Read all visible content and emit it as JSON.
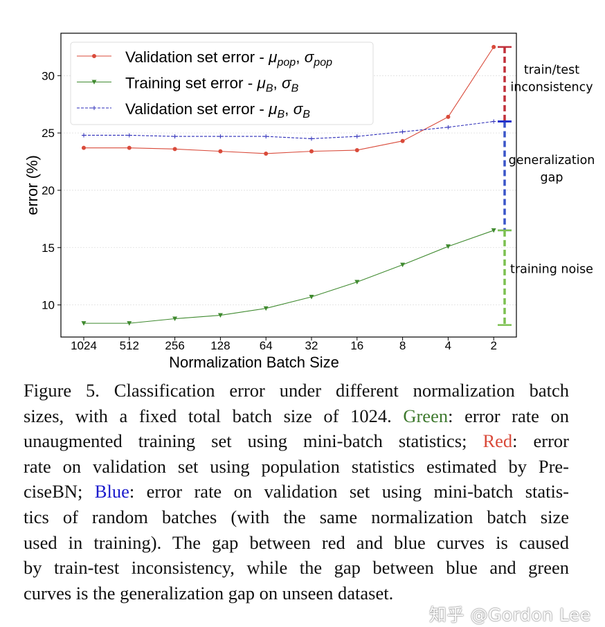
{
  "chart_data": {
    "type": "line",
    "xlabel": "Normalization Batch Size",
    "ylabel": "error (%)",
    "categories": [
      "1024",
      "512",
      "256",
      "128",
      "64",
      "32",
      "16",
      "8",
      "4",
      "2"
    ],
    "ylim": [
      7.2,
      33.7
    ],
    "yticks": [
      10,
      15,
      20,
      25,
      30
    ],
    "grid": "horizontal",
    "legend_placement": "top-left",
    "series": [
      {
        "name": "Validation set error - μpop, σpop",
        "label_main": "Validation set error - ",
        "label_math": [
          [
            "μ",
            "pop"
          ],
          [
            "σ",
            "pop"
          ]
        ],
        "color": "#d94a3a",
        "marker": "circle",
        "linestyle": "solid",
        "values": [
          23.7,
          23.7,
          23.6,
          23.4,
          23.2,
          23.4,
          23.5,
          24.3,
          26.4,
          32.5
        ]
      },
      {
        "name": "Training set error - μB, σB",
        "label_main": "Training set error - ",
        "label_math": [
          [
            "μ",
            "B"
          ],
          [
            "σ",
            "B"
          ]
        ],
        "color": "#3f8a2f",
        "marker": "triangle-down",
        "linestyle": "solid",
        "values": [
          8.4,
          8.4,
          8.8,
          9.1,
          9.7,
          10.7,
          12.0,
          13.5,
          15.1,
          16.5
        ]
      },
      {
        "name": "Validation set error - μB, σB",
        "label_main": "Validation set error - ",
        "label_math": [
          [
            "μ",
            "B"
          ],
          [
            "σ",
            "B"
          ]
        ],
        "color": "#2b2bb8",
        "marker": "plus",
        "linestyle": "dashed",
        "values": [
          24.8,
          24.8,
          24.7,
          24.7,
          24.7,
          24.5,
          24.7,
          25.1,
          25.5,
          26.0
        ]
      }
    ],
    "annotations": [
      {
        "text": [
          "train/test",
          "inconsistency"
        ],
        "from": 26.0,
        "to": 32.5,
        "color": "#c0303a"
      },
      {
        "text": [
          "generalization",
          "gap"
        ],
        "from": 16.5,
        "to": 26.0,
        "color": "#3a55c8"
      },
      {
        "text": [
          "training noise"
        ],
        "from": 8.25,
        "to": 16.5,
        "color": "#7cc050"
      }
    ]
  },
  "caption": {
    "lines": [
      [
        {
          "t": "Figure 5.  Classification error under different normalization batch"
        }
      ],
      [
        {
          "t": "sizes, with a fixed total batch size of 1024. "
        },
        {
          "t": "Green",
          "c": "#3f7a2f"
        },
        {
          "t": ": error rate on"
        }
      ],
      [
        {
          "t": "unaugmented training set using mini-batch statistics; "
        },
        {
          "t": "Red",
          "c": "#d94a3a"
        },
        {
          "t": ": error"
        }
      ],
      [
        {
          "t": "rate on validation set using population statistics estimated by Pre-"
        }
      ],
      [
        {
          "t": "ciseBN; "
        },
        {
          "t": "Blue",
          "c": "#1a1acc"
        },
        {
          "t": ": error rate on validation set using mini-batch statis-"
        }
      ],
      [
        {
          "t": "tics of random batches (with the same normalization batch size"
        }
      ],
      [
        {
          "t": "used in training). The gap between red and blue curves is caused"
        }
      ],
      [
        {
          "t": "by train-test inconsistency, while the gap between blue and green"
        }
      ],
      [
        {
          "t": "curves is the generalization gap on unseen dataset."
        }
      ]
    ]
  },
  "watermark": "知乎 @Gordon Lee"
}
